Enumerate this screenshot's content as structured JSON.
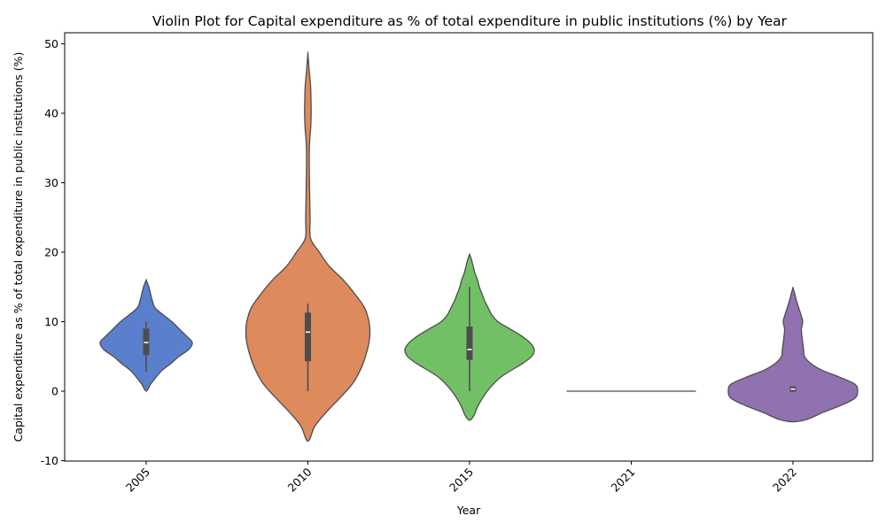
{
  "chart_data": {
    "type": "violin",
    "title": "Violin Plot for Capital expenditure as % of total expenditure in public institutions (%) by Year",
    "xlabel": "Year",
    "ylabel": "Capital expenditure as % of total expenditure in public institutions (%)",
    "categories": [
      "2005",
      "2010",
      "2015",
      "2021",
      "2022"
    ],
    "ylim": [
      -10,
      51.5
    ],
    "yticks": [
      -10,
      0,
      10,
      20,
      30,
      40,
      50
    ],
    "colors": [
      "#5a7fcc",
      "#dd8a5d",
      "#72c065",
      "#bfbfbf",
      "#9172b0"
    ],
    "violins": [
      {
        "category": "2005",
        "y_min": 0,
        "y_max": 16,
        "q1": 5.2,
        "median": 7.0,
        "q3": 9.0,
        "whisker_low": 2.8,
        "whisker_high": 10.0,
        "density": [
          [
            0,
            0
          ],
          [
            1,
            5
          ],
          [
            2,
            11
          ],
          [
            3,
            18
          ],
          [
            4,
            28
          ],
          [
            5,
            37
          ],
          [
            6,
            48
          ],
          [
            7,
            52
          ],
          [
            8,
            45
          ],
          [
            9,
            37
          ],
          [
            10,
            29
          ],
          [
            11,
            19
          ],
          [
            12,
            10
          ],
          [
            13,
            7
          ],
          [
            14,
            5
          ],
          [
            15,
            3
          ],
          [
            16,
            0
          ]
        ]
      },
      {
        "category": "2010",
        "y_min": -7.2,
        "y_max": 48.6,
        "q1": 4.3,
        "median": 8.5,
        "q3": 11.3,
        "whisker_low": 0.0,
        "whisker_high": 12.6,
        "density": [
          [
            -7.2,
            0
          ],
          [
            -5,
            8
          ],
          [
            -3,
            21
          ],
          [
            -1,
            36
          ],
          [
            1,
            50
          ],
          [
            3,
            59
          ],
          [
            5,
            65
          ],
          [
            7,
            69
          ],
          [
            8.5,
            70
          ],
          [
            10,
            69
          ],
          [
            12,
            64
          ],
          [
            14,
            53
          ],
          [
            16,
            40
          ],
          [
            18,
            24
          ],
          [
            20,
            13
          ],
          [
            22,
            3
          ],
          [
            25,
            2.5
          ],
          [
            30,
            1.8
          ],
          [
            34,
            1.5
          ],
          [
            36,
            2
          ],
          [
            38,
            3.2
          ],
          [
            40,
            3.7
          ],
          [
            42,
            3.5
          ],
          [
            44,
            3
          ],
          [
            46,
            1.6
          ],
          [
            48.6,
            0
          ]
        ]
      },
      {
        "category": "2015",
        "y_min": -4.2,
        "y_max": 19.7,
        "q1": 4.5,
        "median": 6.0,
        "q3": 9.3,
        "whisker_low": 0.0,
        "whisker_high": 15.0,
        "density": [
          [
            -4.2,
            0
          ],
          [
            -3.5,
            5
          ],
          [
            -2,
            10
          ],
          [
            0,
            20
          ],
          [
            2,
            35
          ],
          [
            4,
            60
          ],
          [
            5,
            70
          ],
          [
            6,
            73
          ],
          [
            7,
            68
          ],
          [
            8,
            58
          ],
          [
            9,
            45
          ],
          [
            10,
            32
          ],
          [
            11,
            25
          ],
          [
            12,
            21
          ],
          [
            13,
            17
          ],
          [
            14,
            14
          ],
          [
            15,
            11
          ],
          [
            16,
            9
          ],
          [
            17,
            6
          ],
          [
            18,
            4
          ],
          [
            19,
            2
          ],
          [
            19.7,
            0
          ]
        ]
      },
      {
        "category": "2021",
        "y_min": 0,
        "y_max": 0,
        "constant": 0,
        "half_width": 73
      },
      {
        "category": "2022",
        "y_min": -4.4,
        "y_max": 14.9,
        "q1": -0.1,
        "median": 0.3,
        "q3": 0.7,
        "whisker_low": -0.1,
        "whisker_high": 0.7,
        "density": [
          [
            -4.4,
            0
          ],
          [
            -4.1,
            15
          ],
          [
            -3,
            35
          ],
          [
            -2,
            55
          ],
          [
            -1,
            70
          ],
          [
            0,
            73
          ],
          [
            1,
            70
          ],
          [
            2,
            53
          ],
          [
            3,
            33
          ],
          [
            4,
            20
          ],
          [
            5,
            13
          ],
          [
            6,
            12
          ],
          [
            7,
            11
          ],
          [
            8,
            10
          ],
          [
            9,
            9.5
          ],
          [
            10,
            11
          ],
          [
            11,
            9
          ],
          [
            12,
            6.5
          ],
          [
            13,
            4
          ],
          [
            14,
            2
          ],
          [
            14.9,
            0
          ]
        ]
      }
    ]
  }
}
